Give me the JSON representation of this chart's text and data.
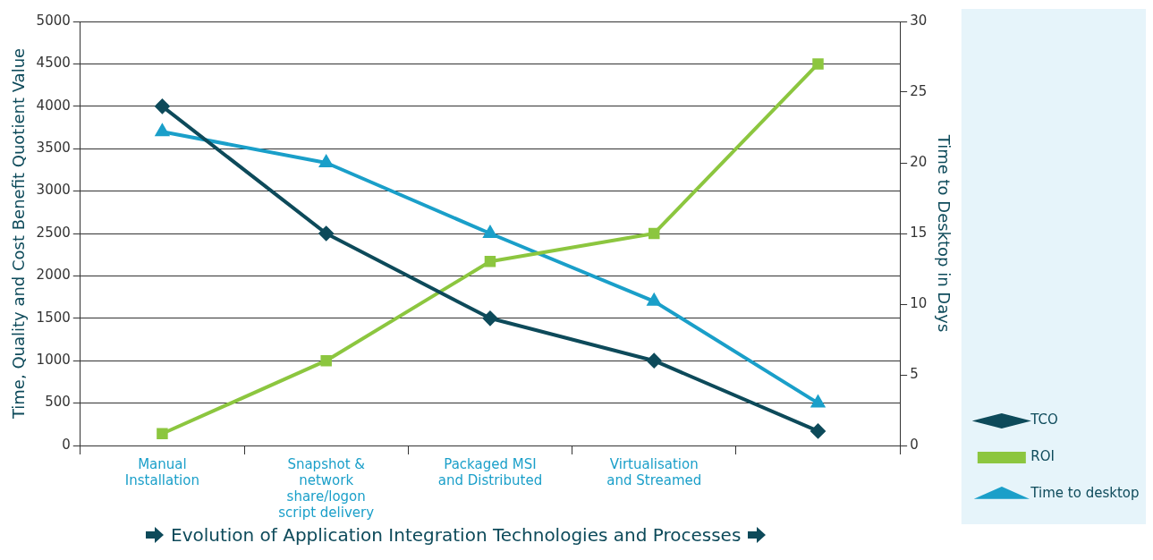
{
  "chart_data": {
    "type": "line",
    "xlabel": "Evolution of Application Integration Technologies and Processes",
    "ylabel": "Time, Quality and Cost Benefit Quotient Value",
    "y2label": "Time to Desktop in Days",
    "categories": [
      "Manual Installation",
      "Snapshot & network share/logon script delivery",
      "Packaged MSI and Distributed",
      "Virtualisation and Streamed",
      null
    ],
    "series": [
      {
        "name": "TCO",
        "color": "#0d4a5a",
        "marker": "diamond",
        "values": [
          4000,
          2500,
          1500,
          1000,
          170
        ]
      },
      {
        "name": "ROI",
        "color": "#8cc63f",
        "marker": "square",
        "values": [
          140,
          1000,
          2170,
          2500,
          4500
        ]
      },
      {
        "name": "Time to desktop",
        "color": "#1a9fc9",
        "marker": "triangle",
        "axis": "y2",
        "values": [
          22.2,
          20,
          15,
          10.2,
          3
        ]
      }
    ],
    "ylim": [
      0,
      5000
    ],
    "yticks": [
      0,
      500,
      1000,
      1500,
      2000,
      2500,
      3000,
      3500,
      4000,
      4500,
      5000
    ],
    "y2lim": [
      0,
      30
    ],
    "y2ticks": [
      0,
      5,
      10,
      15,
      20,
      25,
      30
    ],
    "grid": "y",
    "legend": "right"
  }
}
